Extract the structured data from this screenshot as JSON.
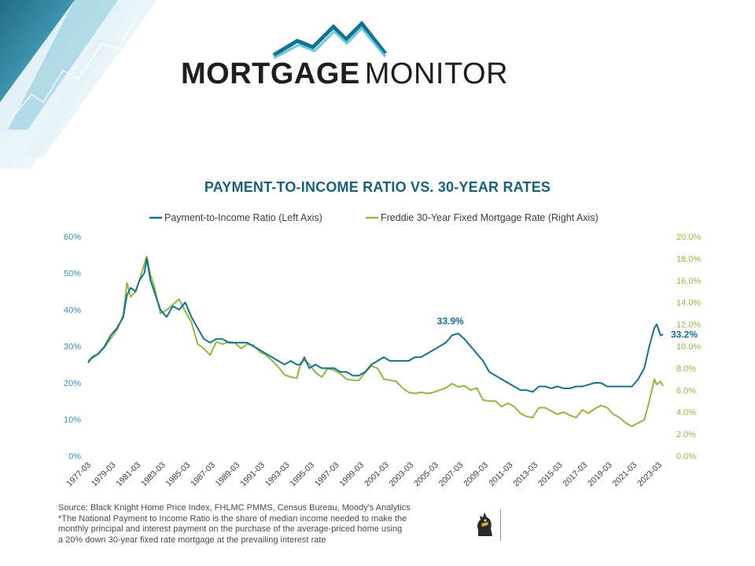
{
  "header": {
    "brand_bold": "MORTGAGE",
    "brand_light": "MONITOR"
  },
  "colors": {
    "pti": "#16708f",
    "rate": "#8cba3f",
    "title": "#1b5f7e",
    "left_axis": "#3a8cb0",
    "right_axis": "#8cba3f"
  },
  "icons": {
    "logo": "mountain-peaks-icon",
    "corporate": "knight-logo-icon"
  },
  "chart_data": {
    "type": "line",
    "title": "PAYMENT-TO-INCOME RATIO VS. 30-YEAR RATES",
    "legend": {
      "placement": "top",
      "items": [
        "Payment-to-Income Ratio (Left Axis)",
        "Freddie 30-Year Fixed Mortgage Rate (Right Axis)"
      ]
    },
    "x_ticks": [
      "1977-03",
      "1979-03",
      "1981-03",
      "1983-03",
      "1985-03",
      "1987-03",
      "1989-03",
      "1991-03",
      "1993-03",
      "1995-03",
      "1997-03",
      "1999-03",
      "2001-03",
      "2003-03",
      "2005-03",
      "2007-03",
      "2009-03",
      "2011-03",
      "2013-03",
      "2015-03",
      "2017-03",
      "2019-03",
      "2021-03",
      "2023-03"
    ],
    "x_range": [
      1977.17,
      2023.5
    ],
    "left_axis": {
      "ylim": [
        0,
        60
      ],
      "ticks": [
        "0%",
        "10%",
        "20%",
        "30%",
        "40%",
        "50%",
        "60%"
      ]
    },
    "right_axis": {
      "ylim": [
        0,
        20
      ],
      "ticks": [
        "0.0%",
        "2.0%",
        "4.0%",
        "6.0%",
        "8.0%",
        "10.0%",
        "12.0%",
        "14.0%",
        "16.0%",
        "18.0%",
        "20.0%"
      ]
    },
    "grid": false,
    "series": [
      {
        "name": "Payment-to-Income Ratio (Left Axis)",
        "axis": "left",
        "x": [
          1977.17,
          1977.5,
          1978.0,
          1978.5,
          1979.0,
          1979.5,
          1980.0,
          1980.3,
          1980.6,
          1981.0,
          1981.3,
          1981.7,
          1981.9,
          1982.2,
          1982.5,
          1983.0,
          1983.5,
          1984.0,
          1984.5,
          1985.0,
          1985.5,
          1986.0,
          1986.5,
          1987.0,
          1987.5,
          1988.0,
          1988.5,
          1989.0,
          1989.5,
          1990.0,
          1990.5,
          1991.0,
          1991.5,
          1992.0,
          1992.5,
          1993.0,
          1993.5,
          1994.0,
          1994.3,
          1994.6,
          1995.0,
          1995.5,
          1996.0,
          1996.5,
          1997.0,
          1997.5,
          1998.0,
          1998.5,
          1999.0,
          1999.5,
          2000.0,
          2000.5,
          2001.0,
          2001.5,
          2002.0,
          2002.5,
          2003.0,
          2003.5,
          2004.0,
          2004.5,
          2005.0,
          2005.5,
          2006.0,
          2006.5,
          2007.0,
          2007.5,
          2008.0,
          2008.5,
          2009.0,
          2009.5,
          2010.0,
          2010.5,
          2011.0,
          2011.5,
          2012.0,
          2012.5,
          2013.0,
          2013.5,
          2014.0,
          2014.5,
          2015.0,
          2015.5,
          2016.0,
          2016.5,
          2017.0,
          2017.5,
          2018.0,
          2018.5,
          2019.0,
          2019.5,
          2020.0,
          2020.5,
          2021.0,
          2021.5,
          2022.0,
          2022.4,
          2022.8,
          2023.0,
          2023.3,
          2023.5
        ],
        "values": [
          25.5,
          27,
          28,
          30,
          33,
          35,
          38,
          44,
          46,
          45,
          48,
          50,
          54,
          48,
          45,
          40,
          38,
          41,
          40,
          42,
          38,
          35,
          32,
          31,
          32,
          32,
          31,
          31,
          31,
          31,
          30,
          29,
          28,
          27,
          26,
          25,
          26,
          25,
          25,
          27,
          24,
          25,
          24,
          24,
          24,
          23,
          23,
          22,
          22,
          23,
          25,
          26,
          27,
          26,
          26,
          26,
          26,
          27,
          27,
          28,
          29,
          30,
          31,
          33,
          33.5,
          32,
          30,
          28,
          26,
          23,
          22,
          21,
          20,
          19,
          18,
          18,
          17.5,
          19,
          19,
          18.5,
          19,
          18.5,
          18.5,
          19,
          19,
          19.5,
          20,
          20,
          19,
          19,
          19,
          19,
          19,
          21,
          24,
          30,
          35,
          36,
          33,
          33.2
        ]
      },
      {
        "name": "Freddie 30-Year Fixed Mortgage Rate (Right Axis)",
        "axis": "right",
        "x": [
          1977.17,
          1977.5,
          1978.0,
          1978.5,
          1979.0,
          1979.5,
          1980.0,
          1980.3,
          1980.6,
          1981.0,
          1981.3,
          1981.7,
          1981.9,
          1982.2,
          1982.5,
          1983.0,
          1983.5,
          1984.0,
          1984.5,
          1985.0,
          1985.5,
          1986.0,
          1986.5,
          1987.0,
          1987.5,
          1988.0,
          1988.5,
          1989.0,
          1989.5,
          1990.0,
          1990.5,
          1991.0,
          1991.5,
          1992.0,
          1992.5,
          1993.0,
          1993.5,
          1994.0,
          1994.3,
          1994.6,
          1995.0,
          1995.5,
          1996.0,
          1996.5,
          1997.0,
          1997.5,
          1998.0,
          1998.5,
          1999.0,
          1999.5,
          2000.0,
          2000.5,
          2001.0,
          2001.5,
          2002.0,
          2002.5,
          2003.0,
          2003.5,
          2004.0,
          2004.5,
          2005.0,
          2005.5,
          2006.0,
          2006.5,
          2007.0,
          2007.5,
          2008.0,
          2008.5,
          2009.0,
          2009.5,
          2010.0,
          2010.5,
          2011.0,
          2011.5,
          2012.0,
          2012.5,
          2013.0,
          2013.5,
          2014.0,
          2014.5,
          2015.0,
          2015.5,
          2016.0,
          2016.5,
          2017.0,
          2017.5,
          2018.0,
          2018.5,
          2019.0,
          2019.5,
          2020.0,
          2020.5,
          2021.0,
          2021.5,
          2022.0,
          2022.4,
          2022.8,
          2023.0,
          2023.3,
          2023.5
        ],
        "values": [
          8.7,
          8.9,
          9.3,
          9.9,
          10.7,
          11.5,
          12.8,
          15.8,
          14.5,
          15,
          16,
          17.5,
          18.2,
          16.5,
          15.5,
          13,
          13.3,
          13.8,
          14.3,
          13.2,
          12.2,
          10.2,
          9.8,
          9.2,
          10.4,
          10.2,
          10.4,
          10.3,
          9.8,
          10.2,
          10.1,
          9.5,
          9.2,
          8.7,
          8.1,
          7.4,
          7.2,
          7.1,
          8.5,
          8.7,
          8.4,
          7.6,
          7.2,
          8.0,
          7.8,
          7.5,
          7.0,
          6.9,
          6.9,
          7.6,
          8.2,
          8.0,
          7.0,
          6.9,
          6.8,
          6.2,
          5.8,
          5.7,
          5.8,
          5.7,
          5.8,
          6.0,
          6.2,
          6.6,
          6.3,
          6.4,
          6.0,
          6.2,
          5.1,
          5.0,
          5.0,
          4.5,
          4.8,
          4.5,
          3.9,
          3.6,
          3.5,
          4.4,
          4.4,
          4.1,
          3.8,
          4.0,
          3.7,
          3.5,
          4.2,
          3.9,
          4.3,
          4.6,
          4.4,
          3.8,
          3.5,
          3.0,
          2.7,
          3.0,
          3.3,
          5.0,
          7.0,
          6.5,
          6.8,
          6.4
        ]
      }
    ],
    "annotations": [
      {
        "text": "33.9%",
        "series": 0,
        "x": 2007.0,
        "y": 33.9
      },
      {
        "text": "33.2%",
        "series": 0,
        "x": 2023.5,
        "y": 33.2
      }
    ]
  },
  "footer": {
    "source": "Source: Black Knight Home Price Index, FHLMC PMMS, Census Bureau, Moody's Analytics",
    "note_lines": [
      "*The National Payment to Income Ratio is the share of median income needed to make the",
      "monthly principal and interest payment on the purchase of the average-priced home using",
      "a 20% down 30-year fixed rate mortgage at the prevailing interest rate"
    ]
  }
}
